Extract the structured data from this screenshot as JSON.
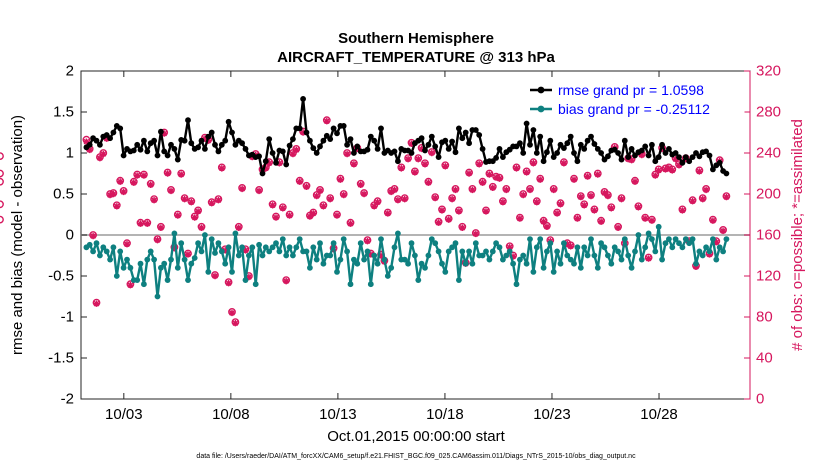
{
  "chart_data": {
    "type": "line",
    "title": "Southern Hemisphere",
    "subtitle": "AIRCRAFT_TEMPERATURE @ 313 hPa",
    "xlabel": "Oct.01,2015 00:00:00 start",
    "ylabel": "rmse and bias (model - observation)",
    "y2label": "# of obs: o=possible; *=assimilated",
    "footer": "data file: /Users/raeder/DAI/ATM_forcXX/CAM6_setup/f.e21.FHIST_BGC.f09_025.CAM6assim.011/Diags_NTrS_2015-10/obs_diag_output.nc",
    "xlim": [
      1.0,
      32.25
    ],
    "ylim": [
      -2,
      2
    ],
    "y2lim": [
      0,
      320
    ],
    "x_ticks": [
      3,
      8,
      13,
      18,
      23,
      28
    ],
    "x_tick_labels": [
      "10/03",
      "10/08",
      "10/13",
      "10/18",
      "10/23",
      "10/28"
    ],
    "y_ticks": [
      -2,
      -1.5,
      -1,
      -0.5,
      0,
      0.5,
      1,
      1.5,
      2
    ],
    "y_tick_labels": [
      "-2",
      "-1.5",
      "-1",
      "-0.5",
      "0",
      "0.5",
      "1",
      "1.5",
      "2"
    ],
    "y2_ticks": [
      0,
      40,
      80,
      120,
      160,
      200,
      240,
      280,
      320
    ],
    "y2_tick_labels": [
      "0",
      "40",
      "80",
      "120",
      "160",
      "200",
      "240",
      "280",
      "320"
    ],
    "legend_position": "top-right",
    "colors": {
      "rmse": "#000000",
      "bias": "#0e8080",
      "obs": "#d6175e",
      "zero_line": "#b4b4b4",
      "legend_text": "#0000ff"
    },
    "series": [
      {
        "name": "rmse grand pr = 1.0598",
        "values": [
          1.07,
          1.1,
          1.18,
          1.15,
          1.1,
          1.2,
          1.22,
          1.18,
          1.25,
          1.33,
          1.3,
          0.97,
          1.05,
          1.02,
          1.03,
          1.1,
          1.04,
          1.15,
          1.02,
          1.12,
          1.15,
          0.97,
          1.26,
          1.02,
          0.97,
          1.1,
          1.05,
          0.92,
          1.16,
          1.15,
          1.4,
          1.12,
          1.05,
          1.07,
          1.15,
          1.05,
          1.2,
          1.25,
          1.1,
          1.02,
          1.1,
          1.15,
          1.38,
          1.25,
          1.1,
          1.15,
          1.12,
          1.05,
          0.97,
          0.98,
          0.95,
          0.96,
          0.75,
          0.9,
          1.17,
          1.0,
          0.88,
          1.03,
          1.02,
          0.86,
          1.09,
          1.17,
          1.3,
          1.3,
          1.66,
          1.25,
          1.15,
          1.06,
          1.0,
          1.08,
          1.15,
          1.21,
          1.17,
          1.3,
          1.24,
          1.33,
          1.33,
          1.1,
          1.17,
          1.0,
          1.08,
          1.02,
          1.02,
          1.04,
          1.2,
          1.15,
          1.05,
          1.3,
          1.0,
          1.03,
          1.0,
          1.02,
          0.9,
          1.05,
          1.03,
          1.03,
          1.0,
          1.12,
          1.15,
          1.18,
          1.03,
          1.1,
          1.2,
          1.08,
          0.95,
          1.13,
          1.15,
          1.05,
          1.14,
          1.01,
          1.3,
          1.18,
          1.25,
          1.12,
          1.28,
          1.28,
          1.22,
          1.05,
          0.89,
          0.9,
          0.9,
          0.94,
          1.05,
          0.95,
          1.01,
          1.04,
          1.08,
          1.08,
          1.12,
          1.0,
          1.36,
          1.1,
          1.28,
          1.0,
          1.2,
          0.9,
          1.01,
          1.15,
          0.95,
          1.0,
          1.1,
          1.06,
          1.12,
          1.2,
          1.0,
          0.9,
          1.1,
          1.05,
          1.15,
          1.2,
          1.11,
          1.05,
          1.0,
          0.92,
          0.96,
          1.03,
          1.04,
          1.0,
          0.92,
          1.15,
          0.95,
          1.05,
          0.97,
          1.01,
          1.03,
          1.08,
          0.97,
          1.1,
          0.9,
          0.95,
          1.1,
          1.0,
          1.05,
          0.98,
          1.0,
          0.95,
          0.88,
          0.95,
          0.9,
          0.95,
          1.0,
          0.96,
          1.01,
          1.02,
          0.97,
          0.8,
          0.85,
          0.88,
          0.78,
          0.75
        ]
      },
      {
        "name": "bias grand pr = -0.25112",
        "values": [
          -0.15,
          -0.12,
          -0.2,
          -0.1,
          -0.25,
          -0.15,
          -0.2,
          -0.3,
          -0.15,
          -0.5,
          -0.2,
          -0.4,
          -0.3,
          -0.4,
          -0.55,
          -0.55,
          -0.35,
          -0.6,
          -0.3,
          -0.2,
          -0.3,
          -0.75,
          -0.4,
          -0.35,
          -0.55,
          -0.3,
          0.02,
          -0.4,
          -0.1,
          -0.3,
          -0.55,
          -0.35,
          -0.28,
          -0.1,
          -0.2,
          0.0,
          -0.45,
          -0.05,
          -0.22,
          -0.1,
          -0.2,
          -0.35,
          -0.15,
          -0.45,
          0.02,
          -0.25,
          -0.15,
          -0.55,
          -0.25,
          -0.15,
          -0.6,
          -0.12,
          -0.25,
          -0.15,
          -0.2,
          -0.15,
          -0.1,
          -0.2,
          -0.05,
          -0.25,
          -0.15,
          -0.25,
          -0.15,
          -0.05,
          -0.2,
          -0.2,
          -0.4,
          -0.15,
          -0.3,
          -0.1,
          -0.35,
          -0.25,
          -0.25,
          -0.1,
          -0.45,
          -0.3,
          -0.05,
          -0.2,
          -0.6,
          -0.3,
          -0.35,
          -0.1,
          -0.3,
          -0.2,
          -0.6,
          -0.25,
          -0.35,
          -0.05,
          -0.3,
          -0.5,
          -0.4,
          -0.15,
          0.02,
          -0.3,
          -0.3,
          -0.35,
          -0.1,
          -0.25,
          -0.55,
          -0.35,
          -0.4,
          -0.25,
          -0.05,
          -0.1,
          -0.2,
          -0.35,
          -0.45,
          -0.2,
          -0.15,
          -0.1,
          -0.55,
          -0.2,
          -0.35,
          -0.2,
          -0.35,
          -0.1,
          -0.25,
          -0.25,
          -0.2,
          -0.3,
          -0.2,
          -0.1,
          -0.15,
          -0.3,
          -0.25,
          -0.2,
          -0.35,
          -0.6,
          -0.3,
          -0.25,
          -0.35,
          -0.05,
          -0.45,
          -0.15,
          -0.05,
          -0.4,
          -0.2,
          -0.1,
          -0.45,
          -0.2,
          -0.35,
          -0.1,
          -0.25,
          -0.3,
          -0.35,
          -0.15,
          -0.4,
          -0.15,
          -0.25,
          -0.05,
          -0.25,
          -0.4,
          -0.1,
          -0.15,
          -0.25,
          -0.35,
          -0.15,
          -0.2,
          -0.3,
          -0.05,
          -0.25,
          -0.4,
          -0.2,
          0.0,
          -0.3,
          -0.15,
          0.02,
          -0.05,
          -0.2,
          0.1,
          -0.3,
          -0.1,
          -0.05,
          -0.15,
          -0.05,
          -0.1,
          -0.15,
          -0.05,
          -0.1,
          -0.05,
          -0.35,
          -0.2,
          -0.25,
          -0.15,
          -0.2,
          -0.05,
          -0.3,
          -0.15,
          -0.2,
          -0.05
        ]
      },
      {
        "name": "obs possible (o)",
        "axis": "right",
        "values": [
          253,
          244,
          160,
          94,
          236,
          240,
          255,
          200,
          201,
          189,
          213,
          203,
          152,
          112,
          212,
          219,
          172,
          219,
          172,
          210,
          195,
          156,
          168,
          260,
          221,
          204,
          148,
          180,
          220,
          196,
          142,
          193,
          178,
          184,
          168,
          255,
          253,
          192,
          121,
          195,
          226,
          146,
          114,
          85,
          75,
          168,
          206,
          146,
          120,
          237,
          239,
          204,
          224,
          226,
          231,
          190,
          178,
          231,
          187,
          116,
          180,
          240,
          244,
          213,
          261,
          208,
          179,
          182,
          199,
          204,
          189,
          272,
          196,
          147,
          180,
          215,
          200,
          240,
          172,
          230,
          245,
          210,
          201,
          155,
          142,
          189,
          193,
          141,
          135,
          182,
          203,
          205,
          195,
          226,
          196,
          235,
          250,
          222,
          235,
          245,
          230,
          212,
          241,
          197,
          173,
          185,
          228,
          176,
          196,
          205,
          184,
          168,
          133,
          221,
          205,
          162,
          230,
          212,
          184,
          220,
          207,
          217,
          216,
          193,
          205,
          149,
          140,
          226,
          177,
          200,
          222,
          205,
          231,
          193,
          215,
          174,
          169,
          155,
          205,
          182,
          191,
          231,
          152,
          150,
          215,
          177,
          198,
          190,
          218,
          199,
          185,
          220,
          174,
          202,
          199,
          187,
          246,
          168,
          196,
          152,
          235,
          234,
          213,
          188,
          239,
          177,
          138,
          175,
          219,
          224,
          245,
          225,
          226,
          224,
          235,
          229,
          185,
          235,
          154,
          194,
          130,
          223,
          196,
          205,
          142,
          175,
          154,
          233,
          165,
          198,
          212,
          220,
          175,
          190,
          237
        ]
      },
      {
        "name": "obs assimilated (*)",
        "axis": "right",
        "values": [
          251,
          243,
          159,
          93,
          235,
          239,
          254,
          199,
          200,
          188,
          212,
          202,
          151,
          111,
          211,
          218,
          171,
          218,
          171,
          209,
          194,
          155,
          167,
          259,
          220,
          203,
          147,
          179,
          219,
          195,
          141,
          192,
          177,
          183,
          167,
          254,
          252,
          191,
          120,
          194,
          225,
          145,
          113,
          84,
          74,
          167,
          205,
          145,
          119,
          236,
          238,
          203,
          223,
          225,
          230,
          189,
          177,
          230,
          186,
          115,
          179,
          239,
          243,
          212,
          260,
          207,
          178,
          181,
          198,
          203,
          188,
          271,
          195,
          146,
          179,
          214,
          199,
          239,
          171,
          229,
          244,
          209,
          200,
          154,
          141,
          188,
          192,
          140,
          134,
          181,
          202,
          204,
          194,
          225,
          195,
          234,
          249,
          221,
          234,
          244,
          229,
          211,
          240,
          196,
          172,
          184,
          227,
          175,
          195,
          204,
          183,
          167,
          132,
          220,
          204,
          161,
          229,
          211,
          183,
          219,
          206,
          216,
          215,
          192,
          204,
          148,
          139,
          225,
          176,
          199,
          221,
          204,
          230,
          192,
          214,
          173,
          168,
          154,
          204,
          181,
          190,
          230,
          151,
          149,
          214,
          176,
          197,
          189,
          217,
          198,
          184,
          219,
          173,
          201,
          198,
          186,
          245,
          167,
          195,
          151,
          234,
          233,
          212,
          187,
          238,
          176,
          137,
          174,
          218,
          223,
          244,
          224,
          225,
          223,
          234,
          228,
          184,
          234,
          153,
          193,
          129,
          222,
          195,
          204,
          141,
          174,
          153,
          232,
          164,
          197,
          211,
          219,
          174,
          189,
          236
        ]
      }
    ]
  }
}
